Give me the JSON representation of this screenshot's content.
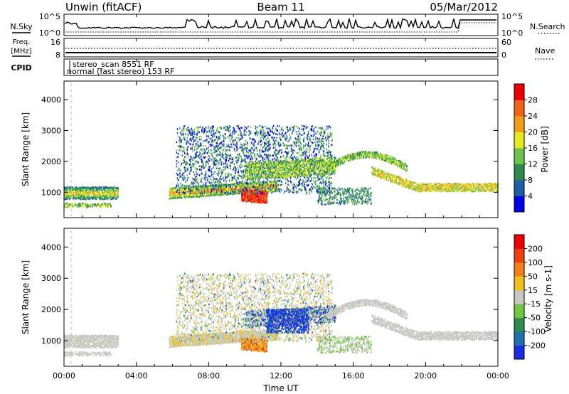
{
  "header": {
    "station": "Unwin (fitACF)",
    "beam": "Beam 11",
    "date": "05/Mar/2012"
  },
  "top_panels": {
    "nsky_label": "N.Sky",
    "nsky_ticks": [
      "10^5",
      "10^0"
    ],
    "nsearch_label": "N.Search",
    "nsearch_ticks": [
      "10^5",
      "10^0"
    ],
    "freq_label": "Freq.",
    "freq_unit": "[MHz]",
    "freq_ticks": [
      "16",
      "8"
    ],
    "nave_label": "Nave",
    "nave_ticks": [
      "60",
      "0"
    ],
    "cpid_label": "CPID",
    "cpid_entries": [
      "stereo_scan 8551 RF",
      "normal (fast stereo) 153 RF"
    ]
  },
  "chart_data": [
    {
      "type": "heatmap",
      "parameter": "power",
      "ylabel": "Slant Range [km]",
      "xlabel": "",
      "yticks": [
        "1000",
        "2000",
        "3000",
        "4000"
      ],
      "ylim": [
        180,
        4600
      ],
      "xlim_hours": [
        0,
        24
      ],
      "colorbar": {
        "label": "Power [dB]",
        "ticks": [
          "4",
          "8",
          "12",
          "16",
          "20",
          "24",
          "28"
        ],
        "colors": [
          "#0000ee",
          "#1e5ea8",
          "#2d8a4c",
          "#6cc24a",
          "#e8e820",
          "#f0a018",
          "#f06418",
          "#ee0000"
        ]
      }
    },
    {
      "type": "heatmap",
      "parameter": "velocity",
      "ylabel": "Slant Range [km]",
      "xlabel": "Time UT",
      "yticks": [
        "1000",
        "2000",
        "3000",
        "4000"
      ],
      "ylim": [
        180,
        4600
      ],
      "xlim_hours": [
        0,
        24
      ],
      "xticks": [
        "00:00",
        "04:00",
        "08:00",
        "12:00",
        "16:00",
        "20:00",
        "00:00"
      ],
      "colorbar": {
        "label": "Velocity [m s-1]",
        "ticks": [
          "200",
          "100",
          "50",
          "15",
          "-15",
          "-50",
          "-100",
          "-200"
        ],
        "colors": [
          "#1a2ee0",
          "#2070b0",
          "#2e8c50",
          "#70c840",
          "#c8c8c0",
          "#f0c020",
          "#f08018",
          "#f04010",
          "#ee0000"
        ]
      }
    }
  ]
}
